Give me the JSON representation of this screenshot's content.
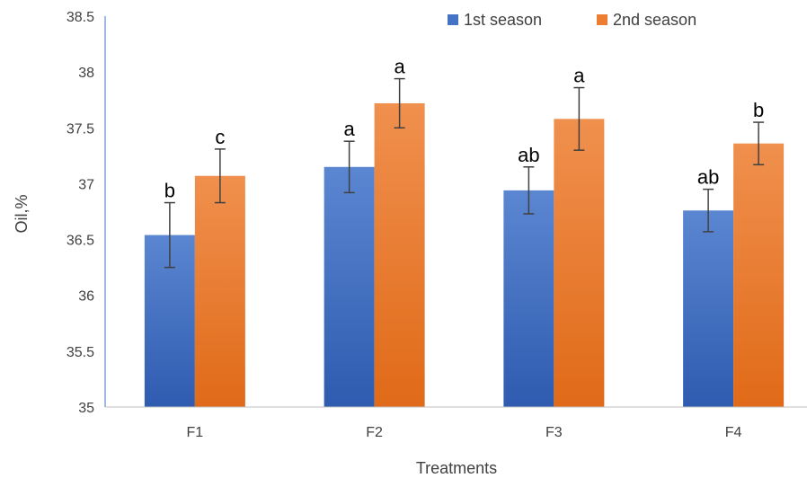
{
  "chart_data": {
    "type": "bar",
    "title": "",
    "xlabel": "Treatments",
    "ylabel": "Oil,%",
    "ylim": [
      35,
      38.5
    ],
    "yticks": [
      "35",
      "35.5",
      "36",
      "36.5",
      "37",
      "37.5",
      "38",
      "38.5"
    ],
    "categories": [
      "F1",
      "F2",
      "F3",
      "F4"
    ],
    "grid": false,
    "legend_position": "top-right",
    "series": [
      {
        "name": "1st season",
        "color": "#4472C4",
        "values": [
          36.54,
          37.15,
          36.94,
          36.76
        ],
        "errors": [
          0.29,
          0.23,
          0.21,
          0.19
        ],
        "labels": [
          "b",
          "a",
          "ab",
          "ab"
        ]
      },
      {
        "name": "2nd season",
        "color": "#ED7D31",
        "values": [
          37.07,
          37.72,
          37.58,
          37.36
        ],
        "errors": [
          0.24,
          0.22,
          0.28,
          0.19
        ],
        "labels": [
          "c",
          "a",
          "a",
          "b"
        ]
      }
    ]
  }
}
